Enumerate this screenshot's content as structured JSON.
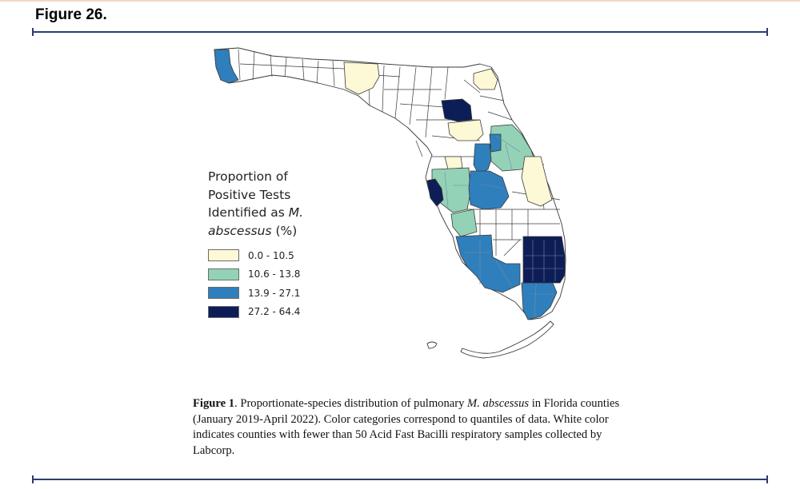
{
  "figure_header": "Figure 26.",
  "legend": {
    "title_line1": "Proportion of",
    "title_line2": "Positive Tests",
    "title_line3_prefix": "Identified as ",
    "title_line3_italic": "M.",
    "title_line4_italic": "abscessus",
    "title_line4_suffix": " (%)",
    "items": [
      {
        "label": "0.0 - 10.5",
        "color": "#fdf8d6"
      },
      {
        "label": "10.6 - 13.8",
        "color": "#93d2b6"
      },
      {
        "label": "13.9 - 27.1",
        "color": "#2f7fbd"
      },
      {
        "label": "27.2 - 64.4",
        "color": "#0d1d57"
      }
    ]
  },
  "caption": {
    "bold": "Figure 1",
    "part1": ". Proportionate-species distribution of pulmonary ",
    "italic": "M. abscessus",
    "part2": " in Florida counties (January 2019-April 2022). Color categories correspond to quantiles of data. White color indicates counties with fewer than 50 Acid Fast Bacilli respiratory samples collected by Labcorp."
  },
  "map": {
    "colors": {
      "none": "#ffffff",
      "q1": "#fdf8d6",
      "q2": "#93d2b6",
      "q3": "#2f7fbd",
      "q4": "#0d1d57",
      "border": "#3a3a3a",
      "rule": "#2b3f6e"
    }
  }
}
